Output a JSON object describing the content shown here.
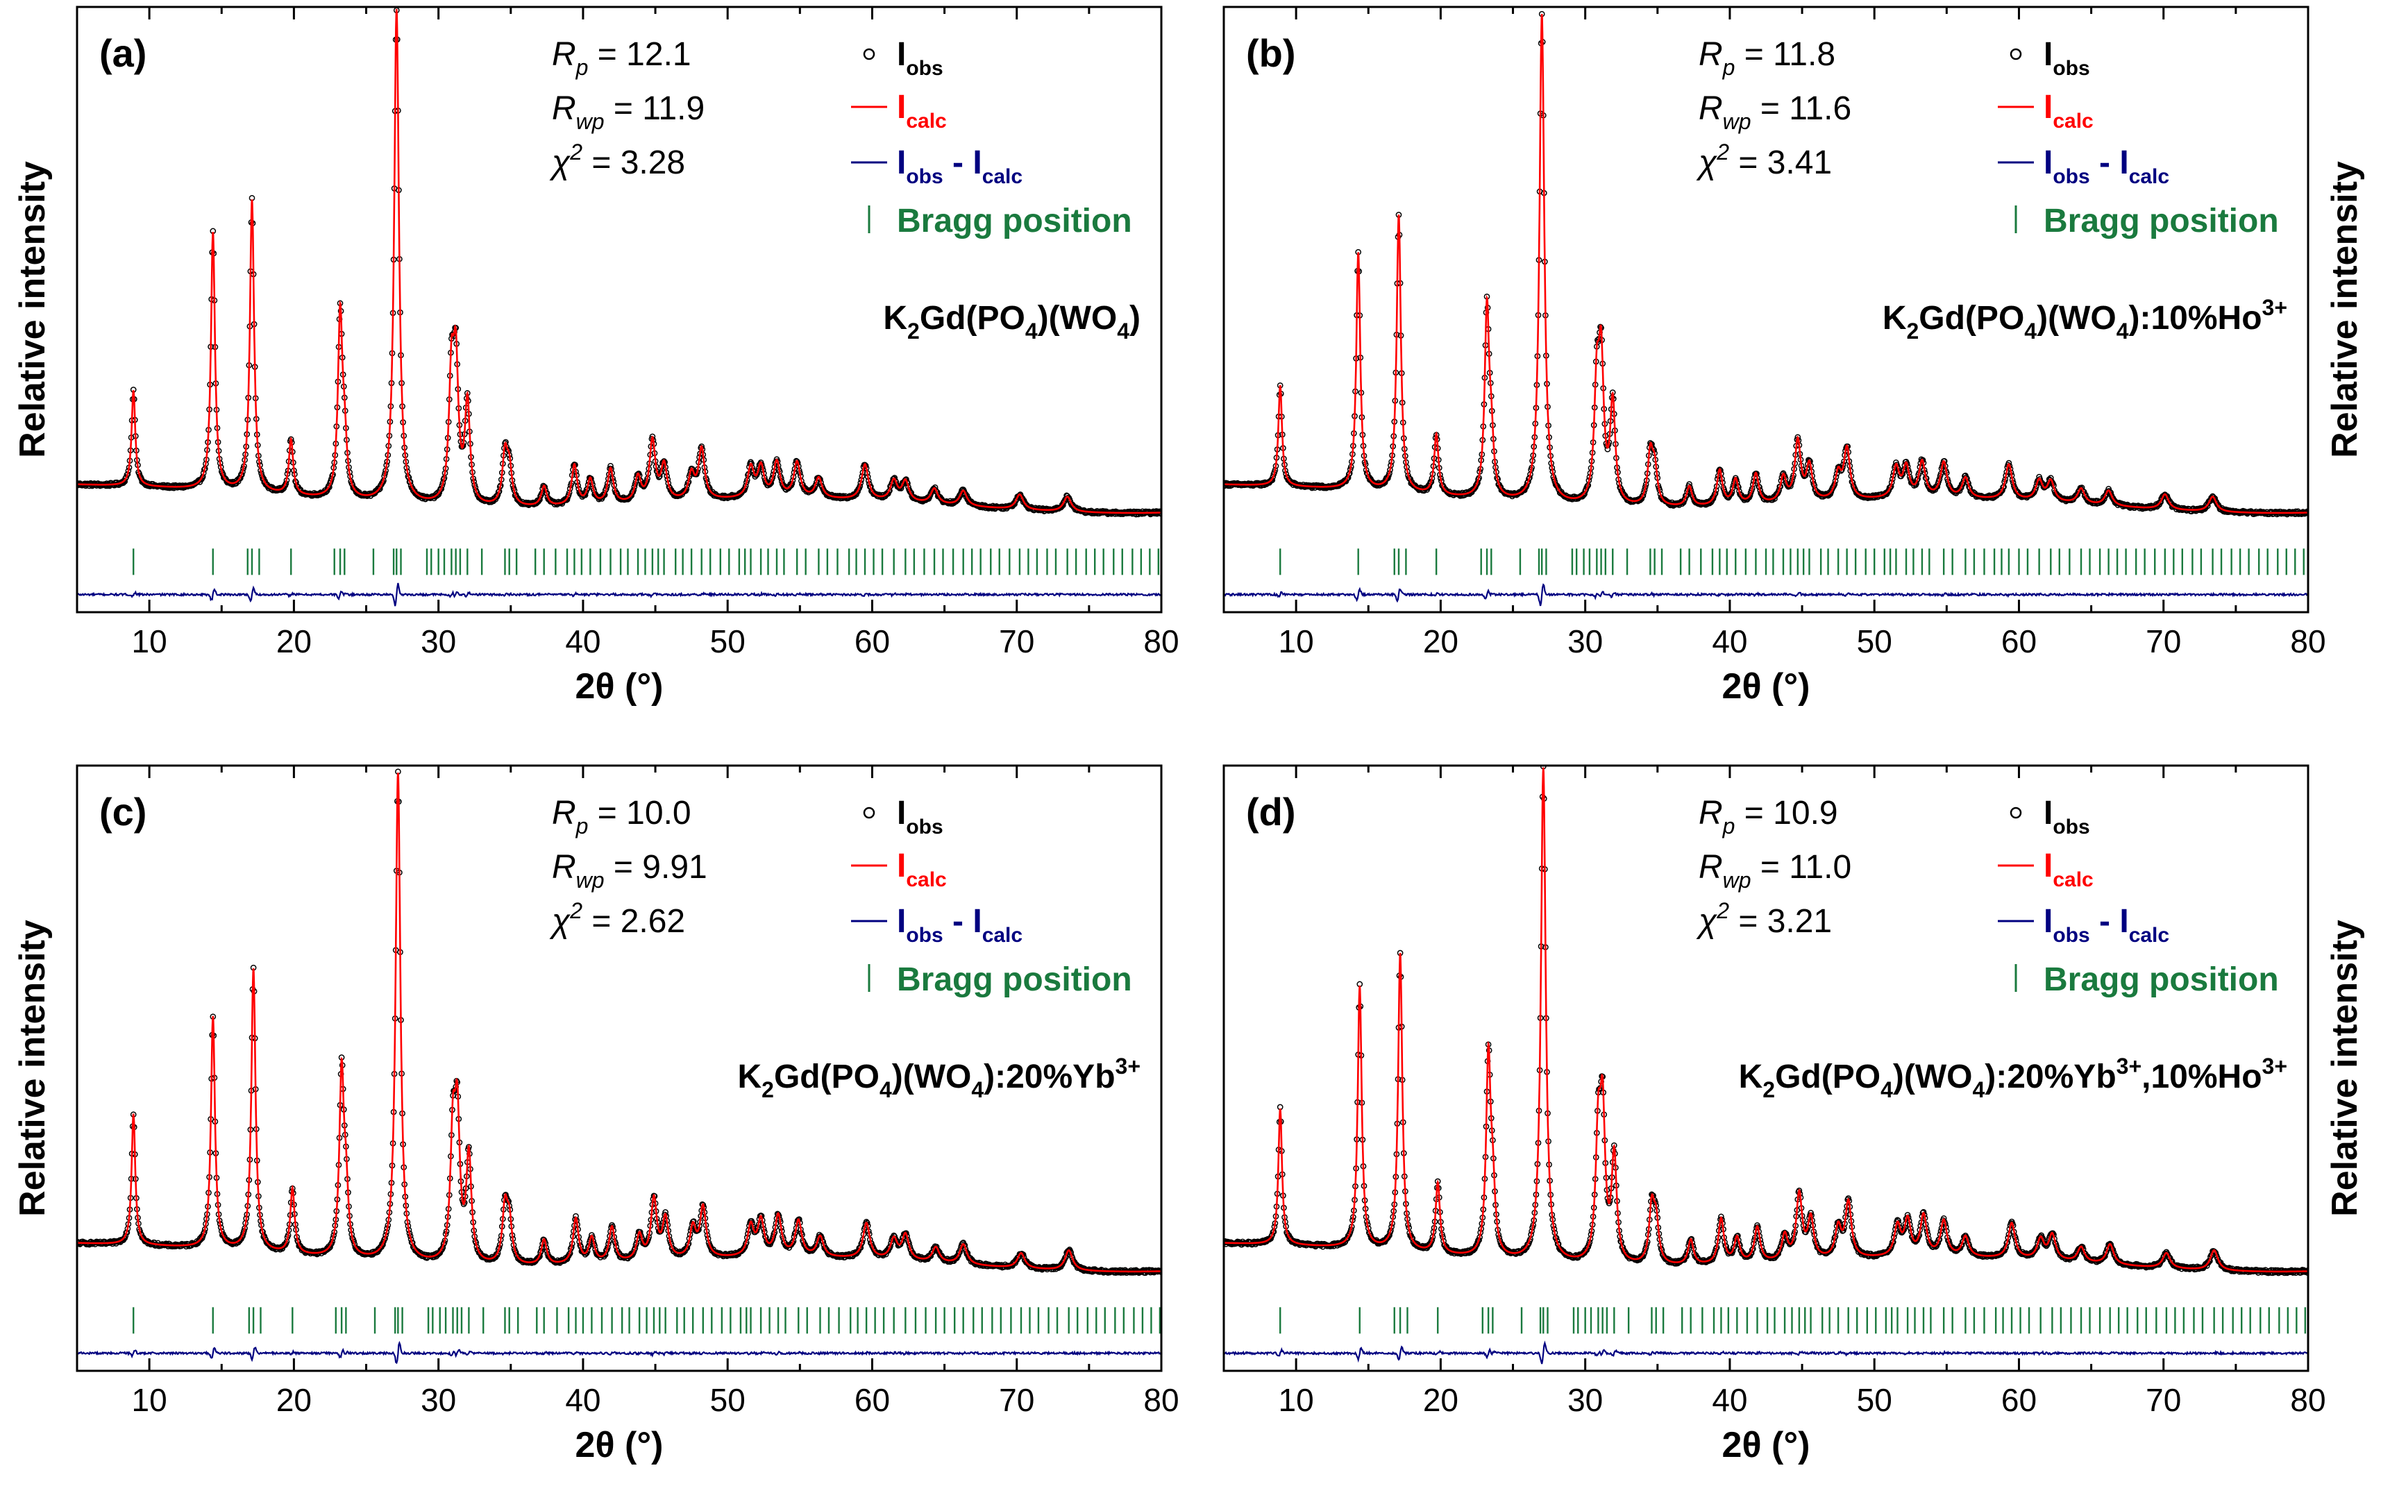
{
  "figure": {
    "type": "rietveld-refinement-grid",
    "layout": "2x2"
  },
  "chart_data": [
    {
      "type": "line",
      "panel": "(a)",
      "compound_parts": [
        [
          "K",
          "n"
        ],
        [
          "2",
          "sub"
        ],
        [
          "Gd(PO",
          "n"
        ],
        [
          "4",
          "sub"
        ],
        [
          ")(WO",
          "n"
        ],
        [
          "4",
          "sub"
        ],
        [
          ")",
          "n"
        ]
      ],
      "stats": [
        {
          "sym": "R",
          "sub": "p",
          "sup": "",
          "op": "= 12.1"
        },
        {
          "sym": "R",
          "sub": "wp",
          "sup": "",
          "op": "= 11.9"
        },
        {
          "sym": "χ",
          "sub": "",
          "sup": "2",
          "op": "= 3.28"
        }
      ],
      "legend": [
        {
          "key": "obs",
          "main": "I",
          "sub": "obs",
          "sub2": "",
          "color": "#000000"
        },
        {
          "key": "calc",
          "main": "I",
          "sub": "calc",
          "sub2": "",
          "color": "#ff0000"
        },
        {
          "key": "diff",
          "main": "I",
          "sub": "obs",
          "sub2": "calc",
          "color": "#000080"
        },
        {
          "key": "bragg",
          "main": "Bragg position",
          "sub": "",
          "sub2": "",
          "color": "#1a7a3e"
        }
      ],
      "xlabel": "2θ (°)",
      "ylabel": "Relative intensity",
      "x_ticks": [
        10,
        20,
        30,
        40,
        50,
        60,
        70,
        80
      ],
      "xlim": [
        5,
        80
      ],
      "ylim": [
        -0.2,
        1.0
      ],
      "background": 0.02,
      "bragg_y": -0.1,
      "diff_y": -0.165,
      "peaks": [
        [
          8.9,
          0.19
        ],
        [
          14.4,
          0.51
        ],
        [
          17.1,
          0.58
        ],
        [
          19.8,
          0.11
        ],
        [
          23.2,
          0.36
        ],
        [
          23.5,
          0.1
        ],
        [
          27.1,
          0.98
        ],
        [
          30.9,
          0.24
        ],
        [
          31.2,
          0.26
        ],
        [
          32.0,
          0.2
        ],
        [
          34.6,
          0.1
        ],
        [
          34.9,
          0.07
        ],
        [
          37.3,
          0.04
        ],
        [
          39.4,
          0.08
        ],
        [
          40.5,
          0.05
        ],
        [
          41.9,
          0.07
        ],
        [
          43.8,
          0.05
        ],
        [
          44.8,
          0.12
        ],
        [
          45.6,
          0.07
        ],
        [
          47.5,
          0.05
        ],
        [
          48.2,
          0.1
        ],
        [
          51.6,
          0.06
        ],
        [
          52.3,
          0.06
        ],
        [
          53.4,
          0.07
        ],
        [
          54.8,
          0.07
        ],
        [
          56.3,
          0.04
        ],
        [
          59.5,
          0.07
        ],
        [
          61.5,
          0.04
        ],
        [
          62.3,
          0.04
        ],
        [
          64.3,
          0.03
        ],
        [
          66.3,
          0.03
        ],
        [
          70.2,
          0.03
        ],
        [
          73.5,
          0.03
        ]
      ],
      "bragg_positions": [
        8.9,
        14.4,
        16.8,
        17.1,
        17.6,
        19.8,
        22.8,
        23.2,
        23.5,
        25.5,
        26.9,
        27.1,
        27.4,
        29.2,
        29.5,
        30.0,
        30.4,
        30.9,
        31.2,
        31.5,
        32.0,
        33.0,
        34.6,
        34.9,
        35.4,
        36.7,
        37.3,
        38.1,
        38.9,
        39.4,
        39.9,
        40.5,
        41.2,
        41.9,
        42.6,
        43.1,
        43.8,
        44.3,
        44.8,
        45.2,
        45.6,
        46.4,
        46.9,
        47.5,
        48.2,
        48.8,
        49.5,
        50.1,
        50.8,
        51.2,
        51.6,
        52.3,
        52.8,
        53.4,
        53.9,
        54.8,
        55.4,
        56.3,
        56.9,
        57.6,
        58.4,
        58.9,
        59.5,
        60.1,
        60.7,
        61.5,
        62.3,
        62.9,
        63.6,
        64.3,
        64.9,
        65.6,
        66.3,
        66.9,
        67.5,
        68.2,
        68.8,
        69.5,
        70.2,
        70.8,
        71.4,
        72.1,
        72.7,
        73.5,
        74.1,
        74.8,
        75.4,
        76.0,
        76.7,
        77.3,
        78.0,
        78.6,
        79.2,
        79.8
      ]
    },
    {
      "type": "line",
      "panel": "(b)",
      "compound_parts": [
        [
          "K",
          "n"
        ],
        [
          "2",
          "sub"
        ],
        [
          "Gd(PO",
          "n"
        ],
        [
          "4",
          "sub"
        ],
        [
          ")(WO",
          "n"
        ],
        [
          "4",
          "sub"
        ],
        [
          "):10%Ho",
          "n"
        ],
        [
          "3+",
          "sup"
        ]
      ],
      "stats": [
        {
          "sym": "R",
          "sub": "p",
          "sup": "",
          "op": "= 11.8"
        },
        {
          "sym": "R",
          "sub": "wp",
          "sup": "",
          "op": "= 11.6"
        },
        {
          "sym": "χ",
          "sub": "",
          "sup": "2",
          "op": "= 3.41"
        }
      ],
      "legend": [
        {
          "key": "obs",
          "main": "I",
          "sub": "obs",
          "sub2": "",
          "color": "#000000"
        },
        {
          "key": "calc",
          "main": "I",
          "sub": "calc",
          "sub2": "",
          "color": "#ff0000"
        },
        {
          "key": "diff",
          "main": "I",
          "sub": "obs",
          "sub2": "calc",
          "color": "#000080"
        },
        {
          "key": "bragg",
          "main": "Bragg position",
          "sub": "",
          "sub2": "",
          "color": "#1a7a3e"
        }
      ],
      "xlabel": "2θ (°)",
      "ylabel": "Relative intensity",
      "x_ticks": [
        10,
        20,
        30,
        40,
        50,
        60,
        70,
        80
      ],
      "xlim": [
        5,
        80
      ],
      "ylim": [
        -0.2,
        1.0
      ],
      "background": 0.02,
      "bragg_y": -0.1,
      "diff_y": -0.165,
      "peaks": [
        [
          8.9,
          0.2
        ],
        [
          14.3,
          0.47
        ],
        [
          17.1,
          0.55
        ],
        [
          19.7,
          0.12
        ],
        [
          23.2,
          0.37
        ],
        [
          23.5,
          0.1
        ],
        [
          27.0,
          0.97
        ],
        [
          30.8,
          0.22
        ],
        [
          31.1,
          0.27
        ],
        [
          31.9,
          0.2
        ],
        [
          34.5,
          0.1
        ],
        [
          34.8,
          0.07
        ],
        [
          37.2,
          0.04
        ],
        [
          39.3,
          0.07
        ],
        [
          40.4,
          0.05
        ],
        [
          41.8,
          0.06
        ],
        [
          43.7,
          0.05
        ],
        [
          44.7,
          0.12
        ],
        [
          45.5,
          0.07
        ],
        [
          47.5,
          0.05
        ],
        [
          48.1,
          0.1
        ],
        [
          51.5,
          0.06
        ],
        [
          52.2,
          0.06
        ],
        [
          53.3,
          0.07
        ],
        [
          54.8,
          0.07
        ],
        [
          56.3,
          0.04
        ],
        [
          59.3,
          0.07
        ],
        [
          61.4,
          0.04
        ],
        [
          62.2,
          0.04
        ],
        [
          64.3,
          0.03
        ],
        [
          66.2,
          0.03
        ],
        [
          70.1,
          0.03
        ],
        [
          73.4,
          0.03
        ]
      ],
      "bragg_positions": [
        8.9,
        14.3,
        16.8,
        17.1,
        17.6,
        19.7,
        22.8,
        23.2,
        23.5,
        25.5,
        26.8,
        27.0,
        27.3,
        29.1,
        29.4,
        29.9,
        30.3,
        30.8,
        31.1,
        31.4,
        31.9,
        32.9,
        34.5,
        34.8,
        35.3,
        36.6,
        37.2,
        38.0,
        38.8,
        39.3,
        39.8,
        40.4,
        41.1,
        41.8,
        42.5,
        43.0,
        43.7,
        44.2,
        44.7,
        45.1,
        45.5,
        46.3,
        46.8,
        47.5,
        48.1,
        48.7,
        49.4,
        50.0,
        50.7,
        51.1,
        51.5,
        52.2,
        52.7,
        53.3,
        53.8,
        54.8,
        55.4,
        56.3,
        56.9,
        57.6,
        58.3,
        58.8,
        59.3,
        60.0,
        60.6,
        61.4,
        62.2,
        62.8,
        63.5,
        64.3,
        64.9,
        65.6,
        66.2,
        66.8,
        67.4,
        68.1,
        68.7,
        69.4,
        70.1,
        70.7,
        71.3,
        72.0,
        72.6,
        73.4,
        74.0,
        74.7,
        75.3,
        75.9,
        76.6,
        77.2,
        77.9,
        78.5,
        79.1,
        79.7
      ]
    },
    {
      "type": "line",
      "panel": "(c)",
      "compound_parts": [
        [
          "K",
          "n"
        ],
        [
          "2",
          "sub"
        ],
        [
          "Gd(PO",
          "n"
        ],
        [
          "4",
          "sub"
        ],
        [
          ")(WO",
          "n"
        ],
        [
          "4",
          "sub"
        ],
        [
          "):20%Yb",
          "n"
        ],
        [
          "3+",
          "sup"
        ]
      ],
      "stats": [
        {
          "sym": "R",
          "sub": "p",
          "sup": "",
          "op": "= 10.0"
        },
        {
          "sym": "R",
          "sub": "wp",
          "sup": "",
          "op": "= 9.91"
        },
        {
          "sym": "χ",
          "sub": "",
          "sup": "2",
          "op": "= 2.62"
        }
      ],
      "legend": [
        {
          "key": "obs",
          "main": "I",
          "sub": "obs",
          "sub2": "",
          "color": "#000000"
        },
        {
          "key": "calc",
          "main": "I",
          "sub": "calc",
          "sub2": "",
          "color": "#ff0000"
        },
        {
          "key": "diff",
          "main": "I",
          "sub": "obs",
          "sub2": "calc",
          "color": "#000080"
        },
        {
          "key": "bragg",
          "main": "Bragg position",
          "sub": "",
          "sub2": "",
          "color": "#1a7a3e"
        }
      ],
      "xlabel": "2θ (°)",
      "ylabel": "Relative intensity",
      "x_ticks": [
        10,
        20,
        30,
        40,
        50,
        60,
        70,
        80
      ],
      "xlim": [
        5,
        80
      ],
      "ylim": [
        -0.2,
        1.0
      ],
      "background": 0.02,
      "bragg_y": -0.1,
      "diff_y": -0.165,
      "peaks": [
        [
          8.9,
          0.26
        ],
        [
          14.4,
          0.46
        ],
        [
          17.2,
          0.56
        ],
        [
          19.9,
          0.13
        ],
        [
          23.3,
          0.36
        ],
        [
          23.6,
          0.12
        ],
        [
          27.2,
          0.97
        ],
        [
          31.0,
          0.24
        ],
        [
          31.3,
          0.27
        ],
        [
          32.1,
          0.21
        ],
        [
          34.6,
          0.11
        ],
        [
          34.9,
          0.08
        ],
        [
          37.3,
          0.05
        ],
        [
          39.5,
          0.09
        ],
        [
          40.6,
          0.05
        ],
        [
          42.0,
          0.07
        ],
        [
          43.9,
          0.05
        ],
        [
          44.9,
          0.12
        ],
        [
          45.7,
          0.08
        ],
        [
          47.6,
          0.06
        ],
        [
          48.3,
          0.1
        ],
        [
          51.6,
          0.06
        ],
        [
          52.3,
          0.07
        ],
        [
          53.5,
          0.08
        ],
        [
          54.9,
          0.07
        ],
        [
          56.4,
          0.04
        ],
        [
          59.6,
          0.07
        ],
        [
          61.5,
          0.04
        ],
        [
          62.3,
          0.05
        ],
        [
          64.4,
          0.03
        ],
        [
          66.3,
          0.04
        ],
        [
          70.3,
          0.03
        ],
        [
          73.6,
          0.04
        ]
      ],
      "bragg_positions": [
        8.9,
        14.4,
        16.9,
        17.2,
        17.7,
        19.9,
        22.9,
        23.3,
        23.6,
        25.6,
        27.0,
        27.2,
        27.5,
        29.3,
        29.6,
        30.1,
        30.5,
        31.0,
        31.3,
        31.6,
        32.1,
        33.1,
        34.6,
        34.9,
        35.5,
        36.8,
        37.3,
        38.2,
        39.0,
        39.5,
        40.0,
        40.6,
        41.3,
        42.0,
        42.7,
        43.2,
        43.9,
        44.4,
        44.9,
        45.3,
        45.7,
        46.5,
        47.0,
        47.6,
        48.3,
        48.9,
        49.6,
        50.2,
        50.9,
        51.3,
        51.6,
        52.3,
        52.9,
        53.5,
        54.0,
        54.9,
        55.5,
        56.4,
        57.0,
        57.7,
        58.5,
        59.0,
        59.6,
        60.2,
        60.8,
        61.5,
        62.3,
        63.0,
        63.7,
        64.4,
        65.0,
        65.7,
        66.3,
        67.0,
        67.6,
        68.3,
        68.9,
        69.6,
        70.3,
        70.9,
        71.5,
        72.2,
        72.8,
        73.6,
        74.2,
        74.9,
        75.5,
        76.1,
        76.8,
        77.4,
        78.1,
        78.7,
        79.3,
        79.9
      ]
    },
    {
      "type": "line",
      "panel": "(d)",
      "compound_parts": [
        [
          "K",
          "n"
        ],
        [
          "2",
          "sub"
        ],
        [
          "Gd(PO",
          "n"
        ],
        [
          "4",
          "sub"
        ],
        [
          ")(WO",
          "n"
        ],
        [
          "4",
          "sub"
        ],
        [
          "):20%Yb",
          "n"
        ],
        [
          "3+",
          "sup"
        ],
        [
          ",10%Ho",
          "n"
        ],
        [
          "3+",
          "sup"
        ]
      ],
      "stats": [
        {
          "sym": "R",
          "sub": "p",
          "sup": "",
          "op": "= 10.9"
        },
        {
          "sym": "R",
          "sub": "wp",
          "sup": "",
          "op": "= 11.0"
        },
        {
          "sym": "χ",
          "sub": "",
          "sup": "2",
          "op": "= 3.21"
        }
      ],
      "legend": [
        {
          "key": "obs",
          "main": "I",
          "sub": "obs",
          "sub2": "",
          "color": "#000000"
        },
        {
          "key": "calc",
          "main": "I",
          "sub": "calc",
          "sub2": "",
          "color": "#ff0000"
        },
        {
          "key": "diff",
          "main": "I",
          "sub": "obs",
          "sub2": "calc",
          "color": "#000080"
        },
        {
          "key": "bragg",
          "main": "Bragg position",
          "sub": "",
          "sub2": "",
          "color": "#1a7a3e"
        }
      ],
      "xlabel": "2θ (°)",
      "ylabel": "Relative intensity",
      "x_ticks": [
        10,
        20,
        30,
        40,
        50,
        60,
        70,
        80
      ],
      "xlim": [
        5,
        80
      ],
      "ylim": [
        -0.2,
        1.0
      ],
      "background": 0.02,
      "bragg_y": -0.1,
      "diff_y": -0.165,
      "peaks": [
        [
          8.9,
          0.27
        ],
        [
          14.4,
          0.52
        ],
        [
          17.2,
          0.59
        ],
        [
          19.8,
          0.14
        ],
        [
          23.3,
          0.39
        ],
        [
          23.6,
          0.12
        ],
        [
          27.1,
          0.98
        ],
        [
          30.9,
          0.24
        ],
        [
          31.2,
          0.28
        ],
        [
          32.0,
          0.21
        ],
        [
          34.6,
          0.11
        ],
        [
          34.9,
          0.08
        ],
        [
          37.3,
          0.05
        ],
        [
          39.4,
          0.09
        ],
        [
          40.5,
          0.05
        ],
        [
          41.9,
          0.07
        ],
        [
          43.8,
          0.05
        ],
        [
          44.8,
          0.13
        ],
        [
          45.6,
          0.08
        ],
        [
          47.5,
          0.06
        ],
        [
          48.2,
          0.11
        ],
        [
          51.6,
          0.06
        ],
        [
          52.3,
          0.07
        ],
        [
          53.4,
          0.08
        ],
        [
          54.8,
          0.07
        ],
        [
          56.3,
          0.04
        ],
        [
          59.5,
          0.07
        ],
        [
          61.5,
          0.04
        ],
        [
          62.3,
          0.05
        ],
        [
          64.3,
          0.03
        ],
        [
          66.3,
          0.04
        ],
        [
          70.2,
          0.03
        ],
        [
          73.5,
          0.04
        ]
      ],
      "bragg_positions": [
        8.9,
        14.4,
        16.8,
        17.2,
        17.7,
        19.8,
        22.9,
        23.3,
        23.6,
        25.6,
        26.9,
        27.1,
        27.4,
        29.2,
        29.5,
        30.0,
        30.4,
        30.9,
        31.2,
        31.5,
        32.0,
        33.0,
        34.6,
        34.9,
        35.4,
        36.7,
        37.3,
        38.1,
        38.9,
        39.4,
        39.9,
        40.5,
        41.2,
        41.9,
        42.6,
        43.1,
        43.8,
        44.3,
        44.8,
        45.2,
        45.6,
        46.4,
        46.9,
        47.5,
        48.2,
        48.8,
        49.5,
        50.1,
        50.8,
        51.2,
        51.6,
        52.3,
        52.8,
        53.4,
        53.9,
        54.8,
        55.4,
        56.3,
        56.9,
        57.6,
        58.4,
        58.9,
        59.5,
        60.1,
        60.7,
        61.5,
        62.3,
        62.9,
        63.6,
        64.3,
        64.9,
        65.6,
        66.3,
        66.9,
        67.5,
        68.2,
        68.8,
        69.5,
        70.2,
        70.8,
        71.4,
        72.1,
        72.7,
        73.5,
        74.1,
        74.8,
        75.4,
        76.0,
        76.7,
        77.3,
        78.0,
        78.6,
        79.2,
        79.8
      ]
    }
  ]
}
